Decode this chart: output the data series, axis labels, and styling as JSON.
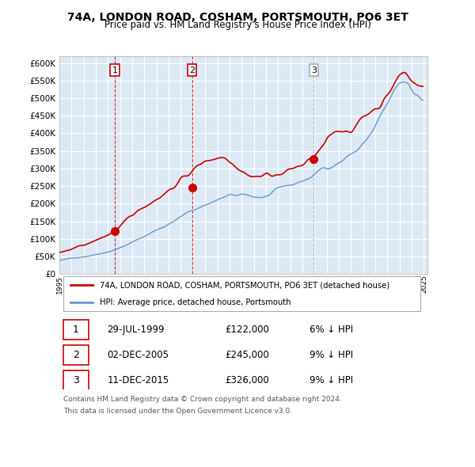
{
  "title": "74A, LONDON ROAD, COSHAM, PORTSMOUTH, PO6 3ET",
  "subtitle": "Price paid vs. HM Land Registry's House Price Index (HPI)",
  "legend_line1": "74A, LONDON ROAD, COSHAM, PORTSMOUTH, PO6 3ET (detached house)",
  "legend_line2": "HPI: Average price, detached house, Portsmouth",
  "footer1": "Contains HM Land Registry data © Crown copyright and database right 2024.",
  "footer2": "This data is licensed under the Open Government Licence v3.0.",
  "transactions": [
    {
      "num": 1,
      "date": "29-JUL-1999",
      "price": 122000,
      "pct": "6%",
      "year_x": 1999.57
    },
    {
      "num": 2,
      "date": "02-DEC-2005",
      "price": 245000,
      "pct": "9%",
      "year_x": 2005.92
    },
    {
      "num": 3,
      "date": "11-DEC-2015",
      "price": 326000,
      "pct": "9%",
      "year_x": 2015.94
    }
  ],
  "sale_color": "#cc0000",
  "hpi_color": "#6699cc",
  "bg_color": "#dce9f5",
  "grid_color": "#ffffff",
  "plot_bg": "#dce9f5",
  "ylim": [
    0,
    620000
  ],
  "xlim_start": 1995.0,
  "xlim_end": 2025.3
}
